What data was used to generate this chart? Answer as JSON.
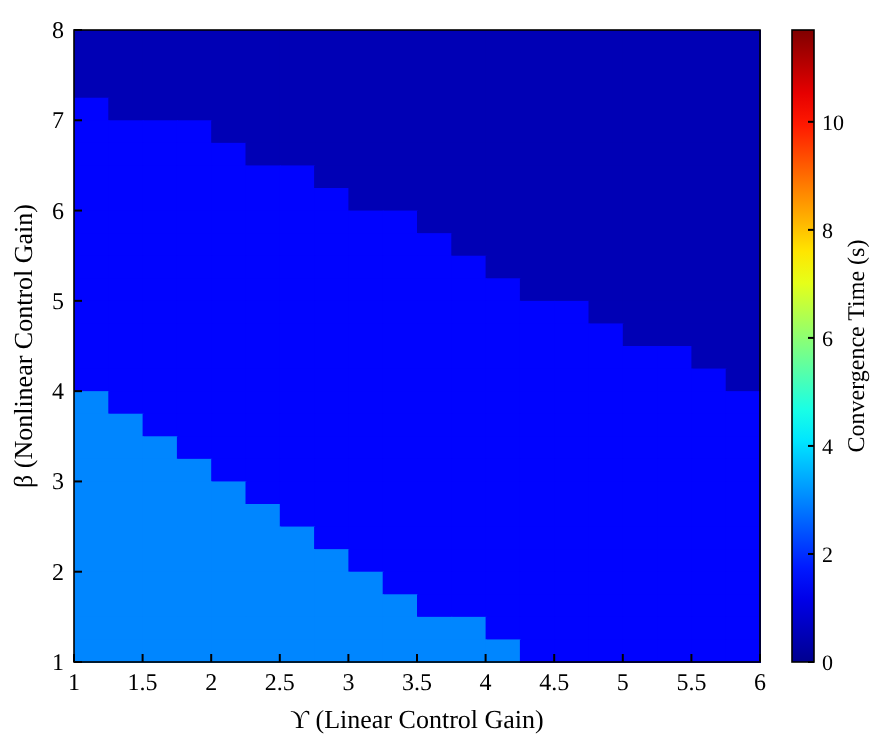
{
  "chart_data": {
    "type": "heatmap",
    "xlabel": "ϒ (Linear Control Gain)",
    "ylabel": "β (Nonlinear Control Gain)",
    "clabel": "Convergence Time (s)",
    "x": [
      1.125,
      1.375,
      1.625,
      1.875,
      2.125,
      2.375,
      2.625,
      2.875,
      3.125,
      3.375,
      3.625,
      3.875,
      4.125,
      4.375,
      4.625,
      4.875,
      5.125,
      5.375,
      5.625,
      5.875
    ],
    "y": [
      7.875,
      7.625,
      7.375,
      7.125,
      6.875,
      6.625,
      6.375,
      6.125,
      5.875,
      5.625,
      5.375,
      5.125,
      4.875,
      4.625,
      4.375,
      4.125,
      3.875,
      3.625,
      3.375,
      3.125,
      2.875,
      2.625,
      2.375,
      2.125,
      1.875,
      1.625,
      1.375,
      1.125
    ],
    "xlim": [
      1,
      6
    ],
    "xticks": [
      1,
      1.5,
      2,
      2.5,
      3,
      3.5,
      4,
      4.5,
      5,
      5.5,
      6
    ],
    "ylim": [
      1,
      8
    ],
    "yticks": [
      1,
      2,
      3,
      4,
      5,
      6,
      7,
      8
    ],
    "clim": [
      0,
      11.7
    ],
    "cticks": [
      0,
      2,
      4,
      6,
      8,
      10
    ],
    "cells": [
      [
        0.5,
        0.5,
        0.5,
        0.5,
        0.5,
        0.5,
        0.5,
        0.5,
        0.5,
        0.5,
        0.5,
        0.5,
        0.5,
        0.5,
        0.5,
        0.5,
        0.5,
        0.5,
        0.5,
        0.5
      ],
      [
        0.5,
        0.5,
        0.5,
        0.5,
        0.5,
        0.5,
        0.5,
        0.5,
        0.5,
        0.5,
        0.5,
        0.5,
        0.5,
        0.5,
        0.5,
        0.5,
        0.5,
        0.5,
        0.5,
        0.5
      ],
      [
        0.5,
        0.5,
        0.5,
        0.5,
        0.5,
        0.5,
        0.5,
        0.5,
        0.5,
        0.5,
        0.5,
        0.5,
        0.5,
        0.5,
        0.5,
        0.5,
        0.5,
        0.5,
        0.5,
        0.5
      ],
      [
        1.5,
        0.5,
        0.5,
        0.5,
        0.5,
        0.5,
        0.5,
        0.5,
        0.5,
        0.5,
        0.5,
        0.5,
        0.5,
        0.5,
        0.5,
        0.5,
        0.5,
        0.5,
        0.5,
        0.5
      ],
      [
        1.5,
        1.5,
        1.5,
        1.5,
        0.5,
        0.5,
        0.5,
        0.5,
        0.5,
        0.5,
        0.5,
        0.5,
        0.5,
        0.5,
        0.5,
        0.5,
        0.5,
        0.5,
        0.5,
        0.5
      ],
      [
        1.5,
        1.5,
        1.5,
        1.5,
        1.5,
        0.5,
        0.5,
        0.5,
        0.5,
        0.5,
        0.5,
        0.5,
        0.5,
        0.5,
        0.5,
        0.5,
        0.5,
        0.5,
        0.5,
        0.5
      ],
      [
        1.5,
        1.5,
        1.5,
        1.5,
        1.5,
        1.5,
        1.5,
        0.5,
        0.5,
        0.5,
        0.5,
        0.5,
        0.5,
        0.5,
        0.5,
        0.5,
        0.5,
        0.5,
        0.5,
        0.5
      ],
      [
        1.5,
        1.5,
        1.5,
        1.5,
        1.5,
        1.5,
        1.5,
        1.5,
        0.5,
        0.5,
        0.5,
        0.5,
        0.5,
        0.5,
        0.5,
        0.5,
        0.5,
        0.5,
        0.5,
        0.5
      ],
      [
        1.5,
        1.5,
        1.5,
        1.5,
        1.5,
        1.5,
        1.5,
        1.5,
        1.5,
        1.5,
        0.5,
        0.5,
        0.5,
        0.5,
        0.5,
        0.5,
        0.5,
        0.5,
        0.5,
        0.5
      ],
      [
        1.5,
        1.5,
        1.5,
        1.5,
        1.5,
        1.5,
        1.5,
        1.5,
        1.5,
        1.5,
        1.5,
        0.5,
        0.5,
        0.5,
        0.5,
        0.5,
        0.5,
        0.5,
        0.5,
        0.5
      ],
      [
        1.5,
        1.5,
        1.5,
        1.5,
        1.5,
        1.5,
        1.5,
        1.5,
        1.5,
        1.5,
        1.5,
        1.5,
        0.5,
        0.5,
        0.5,
        0.5,
        0.5,
        0.5,
        0.5,
        0.5
      ],
      [
        1.5,
        1.5,
        1.5,
        1.5,
        1.5,
        1.5,
        1.5,
        1.5,
        1.5,
        1.5,
        1.5,
        1.5,
        1.5,
        0.5,
        0.5,
        0.5,
        0.5,
        0.5,
        0.5,
        0.5
      ],
      [
        1.5,
        1.5,
        1.5,
        1.5,
        1.5,
        1.5,
        1.5,
        1.5,
        1.5,
        1.5,
        1.5,
        1.5,
        1.5,
        1.5,
        1.5,
        0.5,
        0.5,
        0.5,
        0.5,
        0.5
      ],
      [
        1.5,
        1.5,
        1.5,
        1.5,
        1.5,
        1.5,
        1.5,
        1.5,
        1.5,
        1.5,
        1.5,
        1.5,
        1.5,
        1.5,
        1.5,
        1.5,
        0.5,
        0.5,
        0.5,
        0.5
      ],
      [
        1.5,
        1.5,
        1.5,
        1.5,
        1.5,
        1.5,
        1.5,
        1.5,
        1.5,
        1.5,
        1.5,
        1.5,
        1.5,
        1.5,
        1.5,
        1.5,
        1.5,
        1.5,
        0.5,
        0.5
      ],
      [
        1.5,
        1.5,
        1.5,
        1.5,
        1.5,
        1.5,
        1.5,
        1.5,
        1.5,
        1.5,
        1.5,
        1.5,
        1.5,
        1.5,
        1.5,
        1.5,
        1.5,
        1.5,
        1.5,
        0.5
      ],
      [
        3,
        1.5,
        1.5,
        1.5,
        1.5,
        1.5,
        1.5,
        1.5,
        1.5,
        1.5,
        1.5,
        1.5,
        1.5,
        1.5,
        1.5,
        1.5,
        1.5,
        1.5,
        1.5,
        1.5
      ],
      [
        3,
        3,
        1.5,
        1.5,
        1.5,
        1.5,
        1.5,
        1.5,
        1.5,
        1.5,
        1.5,
        1.5,
        1.5,
        1.5,
        1.5,
        1.5,
        1.5,
        1.5,
        1.5,
        1.5
      ],
      [
        3,
        3,
        3,
        1.5,
        1.5,
        1.5,
        1.5,
        1.5,
        1.5,
        1.5,
        1.5,
        1.5,
        1.5,
        1.5,
        1.5,
        1.5,
        1.5,
        1.5,
        1.5,
        1.5
      ],
      [
        3,
        3,
        3,
        3,
        1.5,
        1.5,
        1.5,
        1.5,
        1.5,
        1.5,
        1.5,
        1.5,
        1.5,
        1.5,
        1.5,
        1.5,
        1.5,
        1.5,
        1.5,
        1.5
      ],
      [
        3,
        3,
        3,
        3,
        3,
        1.5,
        1.5,
        1.5,
        1.5,
        1.5,
        1.5,
        1.5,
        1.5,
        1.5,
        1.5,
        1.5,
        1.5,
        1.5,
        1.5,
        1.5
      ],
      [
        3,
        3,
        3,
        3,
        3,
        3,
        1.5,
        1.5,
        1.5,
        1.5,
        1.5,
        1.5,
        1.5,
        1.5,
        1.5,
        1.5,
        1.5,
        1.5,
        1.5,
        1.5
      ],
      [
        3,
        3,
        3,
        3,
        3,
        3,
        3,
        1.5,
        1.5,
        1.5,
        1.5,
        1.5,
        1.5,
        1.5,
        1.5,
        1.5,
        1.5,
        1.5,
        1.5,
        1.5
      ],
      [
        3,
        3,
        3,
        3,
        3,
        3,
        3,
        3,
        1.5,
        1.5,
        1.5,
        1.5,
        1.5,
        1.5,
        1.5,
        1.5,
        1.5,
        1.5,
        1.5,
        1.5
      ],
      [
        3,
        3,
        3,
        3,
        3,
        3,
        3,
        3,
        3,
        1.5,
        1.5,
        1.5,
        1.5,
        1.5,
        1.5,
        1.5,
        1.5,
        1.5,
        1.5,
        1.5
      ],
      [
        3,
        3,
        3,
        3,
        3,
        3,
        3,
        3,
        3,
        3,
        1.5,
        1.5,
        1.5,
        1.5,
        1.5,
        1.5,
        1.5,
        1.5,
        1.5,
        1.5
      ],
      [
        3,
        3,
        3,
        3,
        3,
        3,
        3,
        3,
        3,
        3,
        3,
        3,
        1.5,
        1.5,
        1.5,
        1.5,
        1.5,
        1.5,
        1.5,
        1.5
      ],
      [
        3,
        3,
        3,
        3,
        3,
        3,
        3,
        3,
        3,
        3,
        3,
        3,
        3,
        1.5,
        1.5,
        1.5,
        1.5,
        1.5,
        1.5,
        1.5
      ]
    ]
  }
}
